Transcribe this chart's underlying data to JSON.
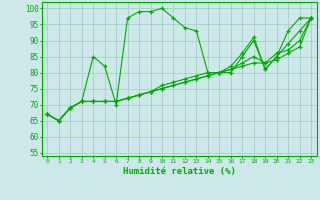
{
  "xlabel": "Humidité relative (%)",
  "bg_color": "#cce8e8",
  "grid_color": "#aacccc",
  "line_color": "#00aa00",
  "marker": "+",
  "xlim": [
    -0.5,
    23.5
  ],
  "ylim": [
    54,
    102
  ],
  "yticks": [
    55,
    60,
    65,
    70,
    75,
    80,
    85,
    90,
    95,
    100
  ],
  "xticks": [
    0,
    1,
    2,
    3,
    4,
    5,
    6,
    7,
    8,
    9,
    10,
    11,
    12,
    13,
    14,
    15,
    16,
    17,
    18,
    19,
    20,
    21,
    22,
    23
  ],
  "series": [
    [
      67,
      65,
      69,
      71,
      85,
      82,
      70,
      97,
      99,
      99,
      100,
      97,
      94,
      93,
      80,
      80,
      80,
      85,
      90,
      81,
      85,
      93,
      97,
      97
    ],
    [
      67,
      65,
      69,
      71,
      71,
      71,
      71,
      72,
      73,
      74,
      75,
      76,
      77,
      78,
      79,
      80,
      81,
      82,
      83,
      83,
      84,
      86,
      88,
      97
    ],
    [
      67,
      65,
      69,
      71,
      71,
      71,
      71,
      72,
      73,
      74,
      75,
      76,
      77,
      78,
      79,
      80,
      81,
      83,
      85,
      83,
      86,
      87,
      90,
      97
    ],
    [
      67,
      65,
      69,
      71,
      71,
      71,
      71,
      72,
      73,
      74,
      76,
      77,
      78,
      79,
      80,
      80,
      82,
      86,
      91,
      81,
      85,
      89,
      93,
      97
    ]
  ]
}
